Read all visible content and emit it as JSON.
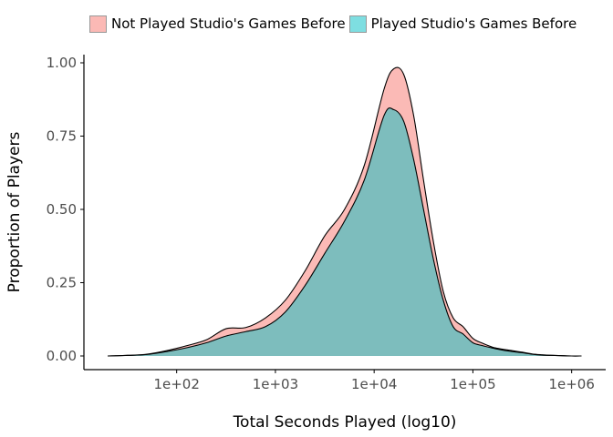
{
  "chart_data": {
    "type": "area",
    "title": "",
    "xlabel": "Total Seconds Played (log10)",
    "ylabel": "Proportion of Players",
    "x_scale": "log10",
    "xlim": [
      20,
      1300000
    ],
    "ylim": [
      0,
      1.05
    ],
    "x_ticks": [
      100,
      1000,
      10000,
      100000,
      1000000
    ],
    "x_tick_labels": [
      "1e+02",
      "1e+03",
      "1e+04",
      "1e+05",
      "1e+06"
    ],
    "y_ticks": [
      0,
      0.25,
      0.5,
      0.75,
      1.0
    ],
    "y_tick_labels": [
      "0.00",
      "0.25",
      "0.50",
      "0.75",
      "1.00"
    ],
    "grid": false,
    "legend_position": "top",
    "x": [
      20,
      32,
      50,
      79,
      126,
      200,
      316,
      501,
      794,
      1259,
      1995,
      3162,
      5012,
      7943,
      12589,
      15849,
      19953,
      25119,
      31623,
      39811,
      50119,
      63096,
      79433,
      100000,
      125893,
      158489,
      199526,
      251189,
      316228,
      398107,
      501187,
      630957,
      794328,
      1000000,
      1258925
    ],
    "series": [
      {
        "name": "Not Played Studio's Games Before",
        "color": "#F8766D",
        "values": [
          0.0,
          0.002,
          0.006,
          0.018,
          0.035,
          0.055,
          0.093,
          0.097,
          0.13,
          0.19,
          0.29,
          0.41,
          0.5,
          0.65,
          0.91,
          0.98,
          0.96,
          0.82,
          0.6,
          0.39,
          0.22,
          0.13,
          0.1,
          0.06,
          0.043,
          0.03,
          0.023,
          0.018,
          0.013,
          0.007,
          0.004,
          0.002,
          0.001,
          0.0,
          0.0
        ]
      },
      {
        "name": "Played Studio's Games Before",
        "color": "#00BFC4",
        "values": [
          0.0,
          0.002,
          0.005,
          0.015,
          0.028,
          0.045,
          0.068,
          0.083,
          0.1,
          0.15,
          0.24,
          0.35,
          0.46,
          0.6,
          0.82,
          0.84,
          0.8,
          0.67,
          0.5,
          0.33,
          0.19,
          0.1,
          0.075,
          0.045,
          0.035,
          0.027,
          0.02,
          0.015,
          0.011,
          0.006,
          0.003,
          0.002,
          0.001,
          0.0,
          0.0
        ]
      }
    ]
  }
}
